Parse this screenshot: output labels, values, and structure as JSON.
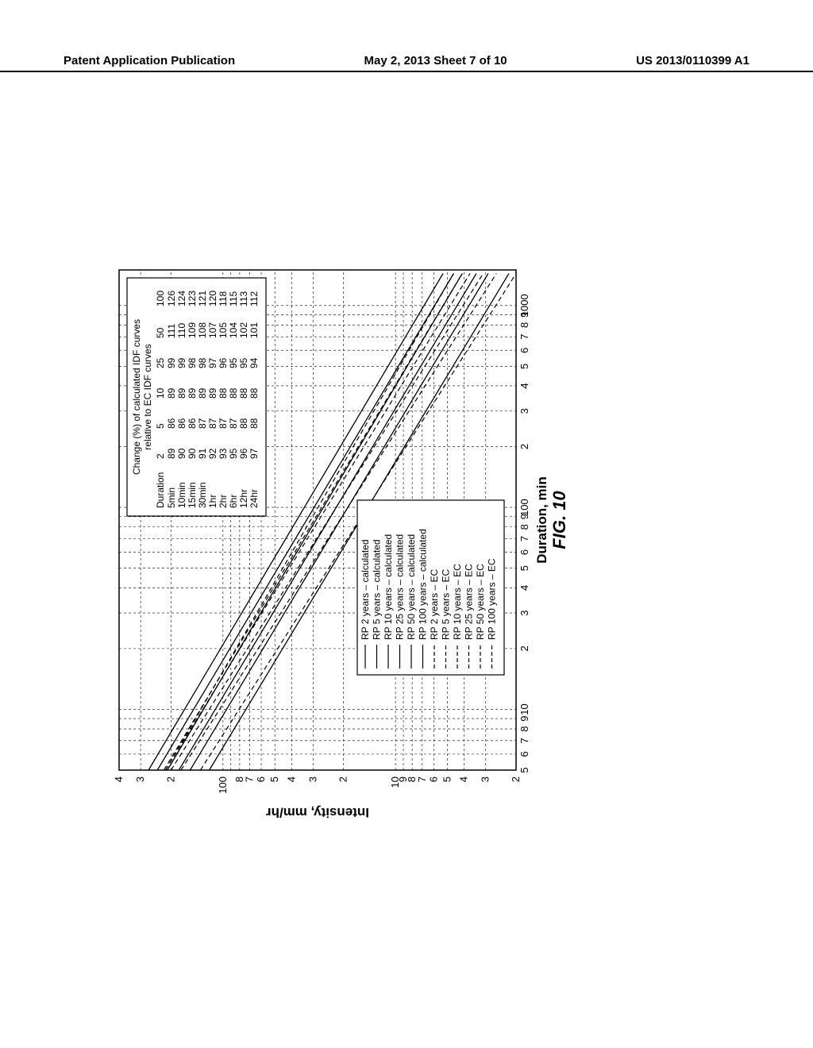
{
  "header": {
    "left": "Patent Application Publication",
    "center": "May 2, 2013   Sheet 7 of 10",
    "right": "US 2013/0110399 A1"
  },
  "figure": {
    "label": "FIG. 10",
    "x_label": "Duration, min",
    "y_label": "Intensity, mm/hr",
    "x_axis": {
      "min_log": 0.699,
      "max_log": 3.176,
      "major_ticks": [
        5,
        6,
        7,
        8,
        9,
        10,
        20,
        30,
        40,
        50,
        60,
        70,
        80,
        90,
        100,
        200,
        300,
        400,
        500,
        600,
        700,
        800,
        900,
        1000
      ],
      "major_labels": [
        "5",
        "6",
        "7",
        "8",
        "9",
        "10",
        "2",
        "3",
        "4",
        "5",
        "6",
        "7",
        "8",
        "9",
        "100",
        "2",
        "3",
        "4",
        "5",
        "6",
        "7",
        "8",
        "9",
        "1000"
      ]
    },
    "y_axis": {
      "min_log": 0.301,
      "max_log": 2.602,
      "major_ticks": [
        2,
        3,
        4,
        5,
        6,
        7,
        8,
        9,
        10,
        20,
        30,
        40,
        50,
        60,
        70,
        80,
        90,
        100,
        200,
        300,
        400
      ],
      "major_labels": [
        "2",
        "3",
        "4",
        "5",
        "6",
        "7",
        "8",
        "9",
        "10",
        "2",
        "3",
        "4",
        "5",
        "6",
        "7",
        "8",
        "",
        "100",
        "2",
        "3",
        "4"
      ]
    },
    "series_solid": [
      {
        "name": "RP 2 years – calculated",
        "y5": 120,
        "y1440": 2.2
      },
      {
        "name": "RP 5 years – calculated",
        "y5": 155,
        "y1440": 2.9
      },
      {
        "name": "RP 10 years – calculated",
        "y5": 180,
        "y1440": 3.4
      },
      {
        "name": "RP 25 years – calculated",
        "y5": 210,
        "y1440": 4.1
      },
      {
        "name": "RP 50 years – calculated",
        "y5": 240,
        "y1440": 4.6
      },
      {
        "name": "RP 100 years – calculated",
        "y5": 270,
        "y1440": 5.3
      }
    ],
    "series_dash": [
      {
        "name": "RP 2 years – EC",
        "y5": 135,
        "y1440": 2.0
      },
      {
        "name": "RP 5 years – EC",
        "y5": 175,
        "y1440": 2.6
      },
      {
        "name": "RP 10 years – EC",
        "y5": 200,
        "y1440": 3.1
      },
      {
        "name": "RP 25 years – EC",
        "y5": 215,
        "y1440": 3.7
      },
      {
        "name": "RP 50 years – EC",
        "y5": 220,
        "y1440": 4.1
      },
      {
        "name": "RP 100 years – EC",
        "y5": 215,
        "y1440": 4.6
      }
    ],
    "legend": {
      "items": [
        "RP 2 years – calculated",
        "RP 5 years – calculated",
        "RP 10 years – calculated",
        "RP 25 years – calculated",
        "RP 50 years – calculated",
        "RP 100 years – calculated",
        "RP 2 years – EC",
        "RP 5 years – EC",
        "RP 10 years – EC",
        "RP 25 years – EC",
        "RP 50 years – EC",
        "RP 100 years – EC"
      ]
    },
    "change_table": {
      "title1": "Change (%) of calculated IDF curves",
      "title2": "relative to EC IDF curves",
      "col_headers": [
        "Duration",
        "2",
        "5",
        "10",
        "25",
        "50",
        "100"
      ],
      "rows": [
        [
          "5min",
          "89",
          "86",
          "89",
          "99",
          "111",
          "126"
        ],
        [
          "10min",
          "90",
          "86",
          "89",
          "99",
          "110",
          "124"
        ],
        [
          "15min",
          "90",
          "86",
          "89",
          "98",
          "109",
          "123"
        ],
        [
          "30min",
          "91",
          "87",
          "89",
          "98",
          "108",
          "121"
        ],
        [
          "1hr",
          "92",
          "87",
          "89",
          "97",
          "107",
          "120"
        ],
        [
          "2hr",
          "93",
          "87",
          "88",
          "96",
          "105",
          "118"
        ],
        [
          "6hr",
          "95",
          "87",
          "88",
          "95",
          "104",
          "115"
        ],
        [
          "12hr",
          "96",
          "88",
          "88",
          "95",
          "102",
          "113"
        ],
        [
          "24hr",
          "97",
          "88",
          "88",
          "94",
          "101",
          "112"
        ]
      ]
    }
  },
  "styling": {
    "bg": "#ffffff",
    "line_color": "#000000",
    "grid_dash": "3 3",
    "series_dash": "6 4"
  }
}
